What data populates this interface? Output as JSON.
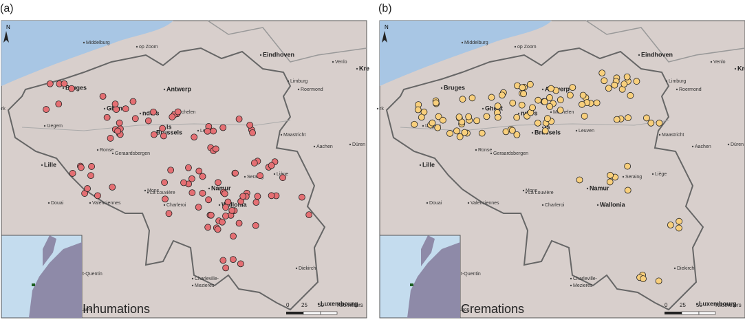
{
  "panels": [
    {
      "label": "(a)",
      "caption": "Inhumations"
    },
    {
      "label": "(b)",
      "caption": "Cremations"
    }
  ],
  "map": {
    "north": "N",
    "places": [
      "Middelburg",
      "op Zoom",
      "Eindhoven",
      "Venlo",
      "Kre",
      "Bruges",
      "Antwerp",
      "Limburg",
      "Roermond",
      "Ghent",
      "nders",
      "Mechelen",
      "Izegem",
      "Brussels",
      "Leuven",
      "Maastricht",
      "Aachen",
      "Düren",
      "Ronse",
      "Geraardsbergen",
      "Lille",
      "Liège",
      "Seraing",
      "Namur",
      "Mons",
      "La Louvière",
      "Charleroi",
      "Wallonia",
      "Douai",
      "Valenciennes",
      "Hauts-de-France",
      "t-Quentin",
      "Charleville-",
      "Mezieres",
      "Diekirch",
      "Laon",
      "Luxembourg",
      "rk",
      "ls"
    ],
    "scale": [
      "0",
      "25",
      "50",
      "Kilometers"
    ]
  }
}
